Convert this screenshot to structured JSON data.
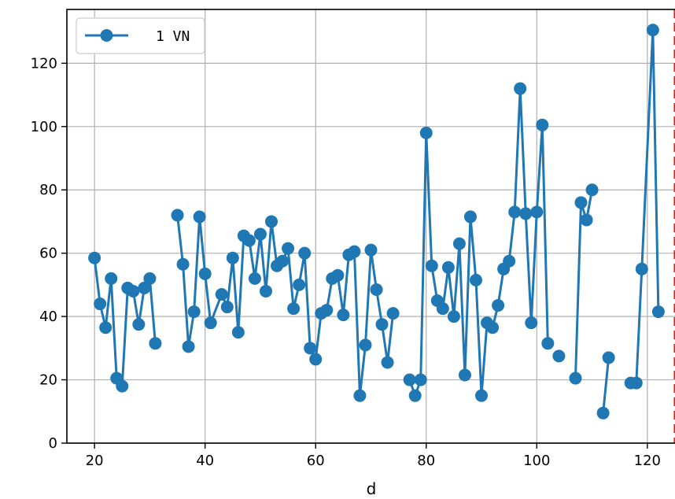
{
  "chart_data": {
    "type": "line",
    "title": "",
    "xlabel": "d",
    "ylabel": "",
    "xlim": [
      15,
      126
    ],
    "ylim": [
      0,
      137
    ],
    "grid": true,
    "legend": "top-left",
    "x_ticks": [
      20,
      40,
      60,
      80,
      100,
      120
    ],
    "y_ticks": [
      0,
      20,
      40,
      60,
      80,
      100,
      120
    ],
    "reference_line": {
      "orientation": "vertical",
      "x": 125,
      "color": "#e31a1c",
      "style": "dashed"
    },
    "series": [
      {
        "name": "1 VN",
        "color": "#1f77b4",
        "marker": "circle",
        "segments": [
          [
            [
              20,
              58.5
            ],
            [
              21,
              44
            ],
            [
              22,
              36.5
            ],
            [
              23,
              52
            ],
            [
              24,
              20.5
            ],
            [
              25,
              18
            ],
            [
              26,
              49
            ],
            [
              27,
              48
            ],
            [
              28,
              37.5
            ],
            [
              29,
              49
            ],
            [
              30,
              52
            ],
            [
              31,
              31.5
            ]
          ],
          [
            [
              35,
              72
            ],
            [
              36,
              56.5
            ],
            [
              37,
              30.5
            ],
            [
              38,
              41.5
            ],
            [
              39,
              71.5
            ],
            [
              40,
              53.5
            ],
            [
              41,
              38
            ],
            [
              43,
              47
            ],
            [
              44,
              43
            ],
            [
              45,
              58.5
            ],
            [
              46,
              35
            ],
            [
              47,
              65.5
            ],
            [
              48,
              64
            ],
            [
              49,
              52
            ],
            [
              50,
              66
            ],
            [
              51,
              48
            ],
            [
              52,
              70
            ],
            [
              53,
              56
            ],
            [
              54,
              57.5
            ],
            [
              55,
              61.5
            ],
            [
              56,
              42.5
            ],
            [
              57,
              50
            ],
            [
              58,
              60
            ],
            [
              59,
              30
            ],
            [
              60,
              26.5
            ],
            [
              61,
              41
            ],
            [
              62,
              42
            ],
            [
              63,
              52
            ],
            [
              64,
              53
            ],
            [
              65,
              40.5
            ],
            [
              66,
              59.5
            ],
            [
              67,
              60.5
            ],
            [
              68,
              15
            ],
            [
              69,
              31
            ],
            [
              70,
              61
            ],
            [
              71,
              48.5
            ],
            [
              72,
              37.5
            ],
            [
              73,
              25.5
            ],
            [
              74,
              41
            ]
          ],
          [
            [
              77,
              20
            ],
            [
              78,
              15
            ],
            [
              79,
              20
            ],
            [
              80,
              98
            ],
            [
              81,
              56
            ],
            [
              82,
              45
            ],
            [
              83,
              42.5
            ],
            [
              84,
              55.5
            ],
            [
              85,
              40
            ],
            [
              86,
              63
            ],
            [
              87,
              21.5
            ],
            [
              88,
              71.5
            ],
            [
              89,
              51.5
            ],
            [
              90,
              15
            ],
            [
              91,
              38
            ],
            [
              92,
              36.5
            ],
            [
              93,
              43.5
            ],
            [
              94,
              55
            ],
            [
              95,
              57.5
            ],
            [
              96,
              73
            ],
            [
              97,
              112
            ],
            [
              98,
              72.5
            ],
            [
              99,
              38
            ],
            [
              100,
              73
            ],
            [
              101,
              100.5
            ],
            [
              102,
              31.5
            ]
          ],
          [
            [
              104,
              27.5
            ]
          ],
          [
            [
              107,
              20.5
            ],
            [
              108,
              76
            ],
            [
              109,
              70.5
            ],
            [
              110,
              80
            ]
          ],
          [
            [
              112,
              9.5
            ],
            [
              113,
              27
            ]
          ],
          [
            [
              117,
              19
            ],
            [
              118,
              19
            ],
            [
              119,
              55
            ],
            [
              121,
              130.5
            ],
            [
              122,
              41.5
            ]
          ]
        ]
      }
    ]
  }
}
